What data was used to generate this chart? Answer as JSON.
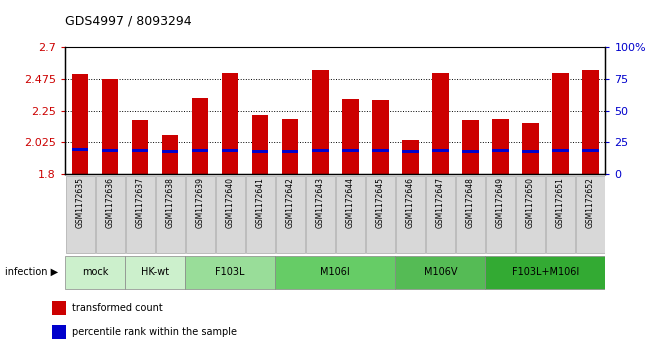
{
  "title": "GDS4997 / 8093294",
  "samples": [
    "GSM1172635",
    "GSM1172636",
    "GSM1172637",
    "GSM1172638",
    "GSM1172639",
    "GSM1172640",
    "GSM1172641",
    "GSM1172642",
    "GSM1172643",
    "GSM1172644",
    "GSM1172645",
    "GSM1172646",
    "GSM1172647",
    "GSM1172648",
    "GSM1172649",
    "GSM1172650",
    "GSM1172651",
    "GSM1172652"
  ],
  "bar_heights": [
    2.51,
    2.475,
    2.185,
    2.075,
    2.34,
    2.52,
    2.22,
    2.19,
    2.535,
    2.33,
    2.325,
    2.04,
    2.52,
    2.185,
    2.19,
    2.16,
    2.52,
    2.535
  ],
  "blue_bottoms": [
    1.965,
    1.96,
    1.955,
    1.952,
    1.957,
    1.958,
    1.953,
    1.953,
    1.958,
    1.957,
    1.957,
    1.952,
    1.958,
    1.953,
    1.957,
    1.953,
    1.958,
    1.958
  ],
  "blue_bar_height": 0.022,
  "groups": [
    {
      "label": "mock",
      "start": 0,
      "end": 2,
      "color": "#ccf0cc"
    },
    {
      "label": "HK-wt",
      "start": 2,
      "end": 4,
      "color": "#ccf0cc"
    },
    {
      "label": "F103L",
      "start": 4,
      "end": 7,
      "color": "#99dd99"
    },
    {
      "label": "M106I",
      "start": 7,
      "end": 11,
      "color": "#66cc66"
    },
    {
      "label": "M106V",
      "start": 11,
      "end": 14,
      "color": "#55bb55"
    },
    {
      "label": "F103L+M106I",
      "start": 14,
      "end": 18,
      "color": "#33aa33"
    }
  ],
  "ylim_left": [
    1.8,
    2.7
  ],
  "ylim_right": [
    0,
    100
  ],
  "yticks_left": [
    1.8,
    2.025,
    2.25,
    2.475,
    2.7
  ],
  "ytick_labels_left": [
    "1.8",
    "2.025",
    "2.25",
    "2.475",
    "2.7"
  ],
  "yticks_right": [
    0,
    25,
    50,
    75,
    100
  ],
  "ytick_labels_right": [
    "0",
    "25",
    "50",
    "75",
    "100%"
  ],
  "bar_color": "#cc0000",
  "blue_color": "#0000cc",
  "bar_width": 0.55,
  "infection_label": "infection",
  "legend_items": [
    {
      "color": "#cc0000",
      "label": "transformed count"
    },
    {
      "color": "#0000cc",
      "label": "percentile rank within the sample"
    }
  ],
  "grid_lines": [
    2.025,
    2.25,
    2.475
  ]
}
